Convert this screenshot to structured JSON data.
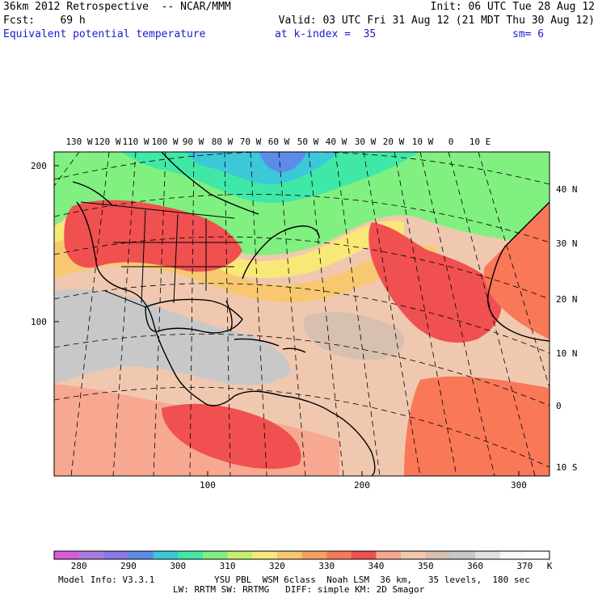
{
  "header": {
    "line1_left": "36km 2012 Retrospective  -- NCAR/MMM",
    "line1_right": "Init: 06 UTC Tue 28 Aug 12",
    "line2_left": "Fcst:    69 h",
    "line2_right": "Valid: 03 UTC Fri 31 Aug 12 (21 MDT Thu 30 Aug 12)",
    "line3_field": "Equivalent potential temperature",
    "line3_level": "at k-index =  35",
    "line3_sm": "sm= 6"
  },
  "map": {
    "lon_labels": [
      "130 W",
      "120 W",
      "110 W",
      "100 W",
      "90 W",
      "80 W",
      "70 W",
      "60 W",
      "50 W",
      "40 W",
      "30 W",
      "20 W",
      "10 W",
      "0",
      "10 E"
    ],
    "lat_labels": [
      "40 N",
      "30 N",
      "20 N",
      "10 N",
      "0",
      "10 S"
    ],
    "grid_y_labels": [
      "200",
      "100"
    ],
    "grid_x_labels": [
      "100",
      "200",
      "300"
    ]
  },
  "colorbar": {
    "colors": [
      "#d85cd8",
      "#a87ce0",
      "#8c78e8",
      "#5c8ce8",
      "#3cc8d8",
      "#40e8a8",
      "#80f080",
      "#c8f070",
      "#f8e878",
      "#f8c870",
      "#f8a060",
      "#f87858",
      "#f05050",
      "#f8a890",
      "#f0c8b0",
      "#d8c0b0",
      "#c8c8c8",
      "#e0e0e0",
      "#f8f8f8",
      "#ffffff"
    ],
    "labels": [
      "280",
      "290",
      "300",
      "310",
      "320",
      "330",
      "340",
      "350",
      "360",
      "370"
    ],
    "unit": "K"
  },
  "footer": {
    "line1_left": "Model Info: V3.3.1",
    "line1_right": "YSU PBL  WSM 6class  Noah LSM  36 km,   35 levels,  180 sec",
    "line2": "LW: RRTM SW: RRTMG   DIFF: simple KM: 2D Smagor"
  }
}
